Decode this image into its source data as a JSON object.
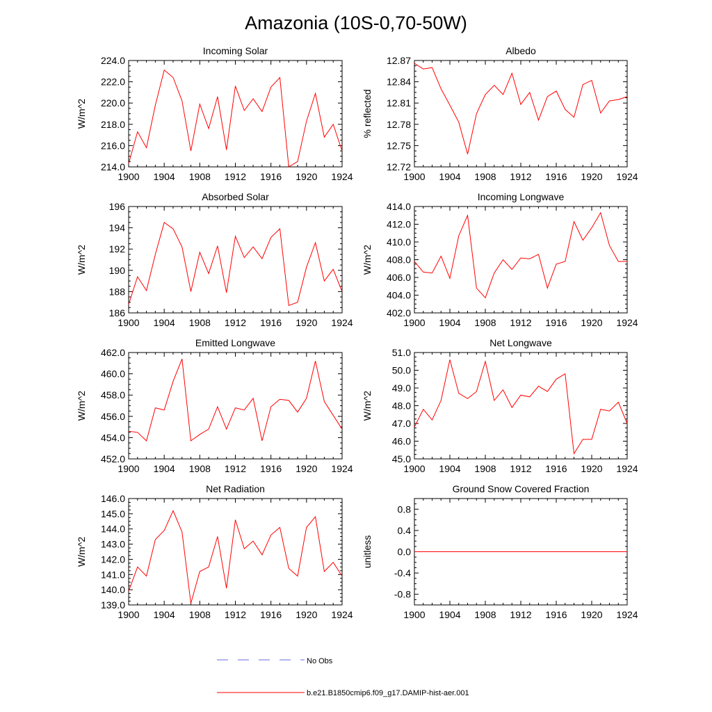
{
  "figure": {
    "title": "Amazonia (10S-0,70-50W)"
  },
  "legend": {
    "entries": [
      {
        "label": "No Obs",
        "color": "#6a6ae6",
        "dashed": true
      },
      {
        "label": "b.e21.B1850cmip6.f09_g17.DAMIP-hist-aer.001",
        "color": "#ff0000",
        "dashed": false
      }
    ]
  },
  "chart_data": [
    {
      "type": "line",
      "title": "Incoming Solar",
      "ylabel": "W/m^2",
      "xlim": [
        1900,
        1924
      ],
      "ylim": [
        214,
        224
      ],
      "xticks": [
        1900,
        1904,
        1908,
        1912,
        1916,
        1920,
        1924
      ],
      "yticks": [
        "214.0",
        "216.0",
        "218.0",
        "220.0",
        "222.0",
        "224.0"
      ],
      "x": [
        1900,
        1901,
        1902,
        1903,
        1904,
        1905,
        1906,
        1907,
        1908,
        1909,
        1910,
        1911,
        1912,
        1913,
        1914,
        1915,
        1916,
        1917,
        1918,
        1919,
        1920,
        1921,
        1922,
        1923,
        1924
      ],
      "series": [
        {
          "color": "#ff0000",
          "values": [
            214.3,
            217.3,
            215.8,
            219.8,
            223.1,
            222.4,
            220.2,
            215.5,
            219.9,
            217.6,
            220.6,
            215.6,
            221.6,
            219.3,
            220.4,
            219.2,
            221.5,
            222.4,
            214.0,
            214.5,
            218.3,
            220.9,
            216.8,
            218.0,
            215.5
          ]
        }
      ]
    },
    {
      "type": "line",
      "title": "Albedo",
      "ylabel": "% reflected",
      "xlim": [
        1900,
        1924
      ],
      "ylim": [
        12.72,
        12.87
      ],
      "xticks": [
        1900,
        1904,
        1908,
        1912,
        1916,
        1920,
        1924
      ],
      "yticks": [
        "12.72",
        "12.75",
        "12.78",
        "12.81",
        "12.84",
        "12.87"
      ],
      "x": [
        1900,
        1901,
        1902,
        1903,
        1904,
        1905,
        1906,
        1907,
        1908,
        1909,
        1910,
        1911,
        1912,
        1913,
        1914,
        1915,
        1916,
        1917,
        1918,
        1919,
        1920,
        1921,
        1922,
        1923,
        1924
      ],
      "series": [
        {
          "color": "#ff0000",
          "values": [
            12.866,
            12.858,
            12.86,
            12.83,
            12.807,
            12.783,
            12.738,
            12.795,
            12.822,
            12.835,
            12.822,
            12.852,
            12.808,
            12.825,
            12.786,
            12.819,
            12.827,
            12.801,
            12.79,
            12.836,
            12.842,
            12.796,
            12.813,
            12.815,
            12.819
          ]
        }
      ]
    },
    {
      "type": "line",
      "title": "Absorbed Solar",
      "ylabel": "W/m^2",
      "xlim": [
        1900,
        1924
      ],
      "ylim": [
        186,
        196
      ],
      "xticks": [
        1900,
        1904,
        1908,
        1912,
        1916,
        1920,
        1924
      ],
      "yticks": [
        "186",
        "188",
        "190",
        "192",
        "194",
        "196"
      ],
      "x": [
        1900,
        1901,
        1902,
        1903,
        1904,
        1905,
        1906,
        1907,
        1908,
        1909,
        1910,
        1911,
        1912,
        1913,
        1914,
        1915,
        1916,
        1917,
        1918,
        1919,
        1920,
        1921,
        1922,
        1923,
        1924
      ],
      "series": [
        {
          "color": "#ff0000",
          "values": [
            186.8,
            189.4,
            188.1,
            191.5,
            194.5,
            193.9,
            192.2,
            188.0,
            191.7,
            189.7,
            192.3,
            187.9,
            193.2,
            191.2,
            192.2,
            191.1,
            193.1,
            193.9,
            186.7,
            187.0,
            190.3,
            192.6,
            189.0,
            190.1,
            188.0
          ]
        }
      ]
    },
    {
      "type": "line",
      "title": "Incoming Longwave",
      "ylabel": "W/m^2",
      "xlim": [
        1900,
        1924
      ],
      "ylim": [
        402,
        414
      ],
      "xticks": [
        1900,
        1904,
        1908,
        1912,
        1916,
        1920,
        1924
      ],
      "yticks": [
        "402.0",
        "404.0",
        "406.0",
        "408.0",
        "410.0",
        "412.0",
        "414.0"
      ],
      "x": [
        1900,
        1901,
        1902,
        1903,
        1904,
        1905,
        1906,
        1907,
        1908,
        1909,
        1910,
        1911,
        1912,
        1913,
        1914,
        1915,
        1916,
        1917,
        1918,
        1919,
        1920,
        1921,
        1922,
        1923,
        1924
      ],
      "series": [
        {
          "color": "#ff0000",
          "values": [
            407.8,
            406.6,
            406.5,
            408.4,
            405.9,
            410.7,
            413.0,
            404.8,
            403.7,
            406.5,
            408.0,
            406.9,
            408.2,
            408.1,
            408.6,
            404.8,
            407.5,
            407.8,
            412.3,
            410.2,
            411.6,
            413.3,
            409.6,
            407.8,
            407.8
          ]
        }
      ]
    },
    {
      "type": "line",
      "title": "Emitted Longwave",
      "ylabel": "W/m^2",
      "xlim": [
        1900,
        1924
      ],
      "ylim": [
        452,
        462
      ],
      "xticks": [
        1900,
        1904,
        1908,
        1912,
        1916,
        1920,
        1924
      ],
      "yticks": [
        "452.0",
        "454.0",
        "456.0",
        "458.0",
        "460.0",
        "462.0"
      ],
      "x": [
        1900,
        1901,
        1902,
        1903,
        1904,
        1905,
        1906,
        1907,
        1908,
        1909,
        1910,
        1911,
        1912,
        1913,
        1914,
        1915,
        1916,
        1917,
        1918,
        1919,
        1920,
        1921,
        1922,
        1923,
        1924
      ],
      "series": [
        {
          "color": "#ff0000",
          "values": [
            454.6,
            454.5,
            453.7,
            456.8,
            456.6,
            459.3,
            461.4,
            453.7,
            454.3,
            454.8,
            456.9,
            454.8,
            456.8,
            456.6,
            457.7,
            453.7,
            456.9,
            457.6,
            457.5,
            456.4,
            457.7,
            461.2,
            457.4,
            456.1,
            454.8
          ]
        }
      ]
    },
    {
      "type": "line",
      "title": "Net Longwave",
      "ylabel": "W/m^2",
      "xlim": [
        1900,
        1924
      ],
      "ylim": [
        45,
        51
      ],
      "xticks": [
        1900,
        1904,
        1908,
        1912,
        1916,
        1920,
        1924
      ],
      "yticks": [
        "45.0",
        "46.0",
        "47.0",
        "48.0",
        "49.0",
        "50.0",
        "51.0"
      ],
      "x": [
        1900,
        1901,
        1902,
        1903,
        1904,
        1905,
        1906,
        1907,
        1908,
        1909,
        1910,
        1911,
        1912,
        1913,
        1914,
        1915,
        1916,
        1917,
        1918,
        1919,
        1920,
        1921,
        1922,
        1923,
        1924
      ],
      "series": [
        {
          "color": "#ff0000",
          "values": [
            46.8,
            47.8,
            47.2,
            48.3,
            50.6,
            48.7,
            48.4,
            48.8,
            50.5,
            48.3,
            48.9,
            47.9,
            48.6,
            48.5,
            49.1,
            48.8,
            49.5,
            49.8,
            45.3,
            46.1,
            46.1,
            47.8,
            47.7,
            48.2,
            47.0
          ]
        }
      ]
    },
    {
      "type": "line",
      "title": "Net Radiation",
      "ylabel": "W/m^2",
      "xlim": [
        1900,
        1924
      ],
      "ylim": [
        139,
        146
      ],
      "xticks": [
        1900,
        1904,
        1908,
        1912,
        1916,
        1920,
        1924
      ],
      "yticks": [
        "139.0",
        "140.0",
        "141.0",
        "142.0",
        "143.0",
        "144.0",
        "145.0",
        "146.0"
      ],
      "x": [
        1900,
        1901,
        1902,
        1903,
        1904,
        1905,
        1906,
        1907,
        1908,
        1909,
        1910,
        1911,
        1912,
        1913,
        1914,
        1915,
        1916,
        1917,
        1918,
        1919,
        1920,
        1921,
        1922,
        1923,
        1924
      ],
      "series": [
        {
          "color": "#ff0000",
          "values": [
            139.9,
            141.5,
            140.9,
            143.3,
            143.9,
            145.2,
            143.8,
            139.1,
            141.2,
            141.5,
            143.5,
            140.1,
            144.6,
            142.7,
            143.2,
            142.3,
            143.6,
            144.1,
            141.4,
            140.9,
            144.1,
            144.8,
            141.2,
            141.8,
            140.9
          ]
        }
      ]
    },
    {
      "type": "line",
      "title": "Ground Snow Covered Fraction",
      "ylabel": "unitless",
      "xlim": [
        1900,
        1924
      ],
      "ylim": [
        -1,
        1
      ],
      "xticks": [
        1900,
        1904,
        1908,
        1912,
        1916,
        1920,
        1924
      ],
      "yticks": [
        "-0.8",
        "-0.4",
        "0.0",
        "0.4",
        "0.8"
      ],
      "x": [
        1900,
        1901,
        1902,
        1903,
        1904,
        1905,
        1906,
        1907,
        1908,
        1909,
        1910,
        1911,
        1912,
        1913,
        1914,
        1915,
        1916,
        1917,
        1918,
        1919,
        1920,
        1921,
        1922,
        1923,
        1924
      ],
      "series": [
        {
          "color": "#ff0000",
          "values": [
            0,
            0,
            0,
            0,
            0,
            0,
            0,
            0,
            0,
            0,
            0,
            0,
            0,
            0,
            0,
            0,
            0,
            0,
            0,
            0,
            0,
            0,
            0,
            0,
            0
          ]
        }
      ]
    }
  ]
}
